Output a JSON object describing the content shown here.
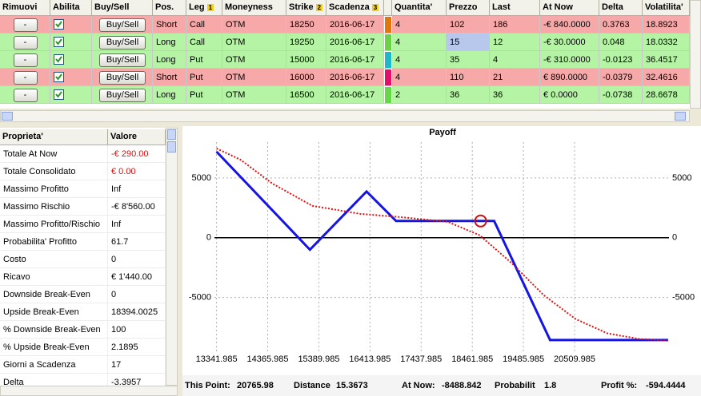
{
  "table": {
    "columns": [
      {
        "label": "Rimuovi"
      },
      {
        "label": "Abilita"
      },
      {
        "label": "Buy/Sell"
      },
      {
        "label": "Pos."
      },
      {
        "label": "Leg",
        "badge": "1"
      },
      {
        "label": "Moneyness"
      },
      {
        "label": "Strike",
        "badge": "2"
      },
      {
        "label": "Scadenza",
        "badge": "3"
      },
      {
        "label": "Quantita'"
      },
      {
        "label": "Prezzo"
      },
      {
        "label": "Last"
      },
      {
        "label": "At Now"
      },
      {
        "label": "Delta"
      },
      {
        "label": "Volatilita'"
      }
    ],
    "rows": [
      [
        "-",
        true,
        "Buy/Sell",
        "Short",
        "Call",
        "OTM",
        "18250",
        "2016-06-17",
        "4",
        "102",
        "186",
        "-€ 840.0000",
        "0.3763",
        "18.8923"
      ],
      [
        "-",
        true,
        "Buy/Sell",
        "Long",
        "Call",
        "OTM",
        "19250",
        "2016-06-17",
        "4",
        "15",
        "12",
        "-€ 30.0000",
        "0.048",
        "18.0332"
      ],
      [
        "-",
        true,
        "Buy/Sell",
        "Long",
        "Put",
        "OTM",
        "15000",
        "2016-06-17",
        "4",
        "35",
        "4",
        "-€ 310.0000",
        "-0.0123",
        "36.4517"
      ],
      [
        "-",
        true,
        "Buy/Sell",
        "Short",
        "Put",
        "OTM",
        "16000",
        "2016-06-17",
        "4",
        "110",
        "21",
        "€ 890.0000",
        "-0.0379",
        "32.4616"
      ],
      [
        "-",
        true,
        "Buy/Sell",
        "Long",
        "Put",
        "OTM",
        "16500",
        "2016-06-17",
        "2",
        "36",
        "36",
        "€ 0.0000",
        "-0.0738",
        "28.6678"
      ]
    ],
    "strip_colors": [
      "#e07810",
      "#6cd048",
      "#20b8c8",
      "#e0106a",
      "#66d848"
    ]
  },
  "properties": {
    "columns": [
      "Proprieta'",
      "Valore"
    ],
    "rows": [
      [
        "Totale At Now",
        "-€ 290.00"
      ],
      [
        "Totale Consolidato",
        "€ 0.00"
      ],
      [
        "Massimo Profitto",
        "Inf"
      ],
      [
        "Massimo Rischio",
        "-€ 8'560.00"
      ],
      [
        "Massimo Profitto/Rischio",
        "Inf"
      ],
      [
        "Probabilita' Profitto",
        "61.7"
      ],
      [
        "Costo",
        "0"
      ],
      [
        "Ricavo",
        "€ 1'440.00"
      ],
      [
        "Downside Break-Even",
        "0"
      ],
      [
        "Upside Break-Even",
        "18394.0025"
      ],
      [
        "% Downside Break-Even",
        "100"
      ],
      [
        "% Upside Break-Even",
        "2.1895"
      ],
      [
        "Giorni a Scadenza",
        "17"
      ],
      [
        "Delta",
        "-3.3957"
      ]
    ]
  },
  "chart_data": {
    "type": "line",
    "title": "Payoff",
    "xlim": [
      13300,
      22400
    ],
    "ylim": [
      -9500,
      8000
    ],
    "xticks": [
      13341.985,
      14365.985,
      15389.985,
      16413.985,
      17437.985,
      18461.985,
      19485.985,
      20509.985
    ],
    "yticks": [
      5000,
      0,
      -5000
    ],
    "grid": true,
    "series": [
      {
        "color": "#1414e6",
        "x": [
          13342,
          15211,
          16345,
          16936,
          18900,
          20019,
          22383
        ],
        "values": [
          7200,
          -1000,
          3870,
          1400,
          1400,
          -8560,
          -8560
        ]
      },
      {
        "color": "#e01010",
        "x": [
          13342,
          13821,
          14460,
          15259,
          16217,
          17016,
          17974,
          18613,
          19252,
          19891,
          20530,
          21169,
          21808,
          22383
        ],
        "values": [
          7470,
          6530,
          4530,
          2670,
          2000,
          1730,
          1330,
          200,
          -2130,
          -4800,
          -6800,
          -8000,
          -8470,
          -8600
        ]
      }
    ],
    "marker": {
      "x": 18629,
      "y": 1400,
      "color": "#d01010"
    },
    "status": [
      {
        "label": "This Point:",
        "value": "20765.98"
      },
      {
        "label": "Distance",
        "value": "15.3673"
      },
      {
        "label": "At Now:",
        "value": "-8488.842"
      },
      {
        "label": "Probabilit",
        "value": "1.8"
      },
      {
        "label": "Profit %:",
        "value": "-594.4444"
      }
    ]
  }
}
